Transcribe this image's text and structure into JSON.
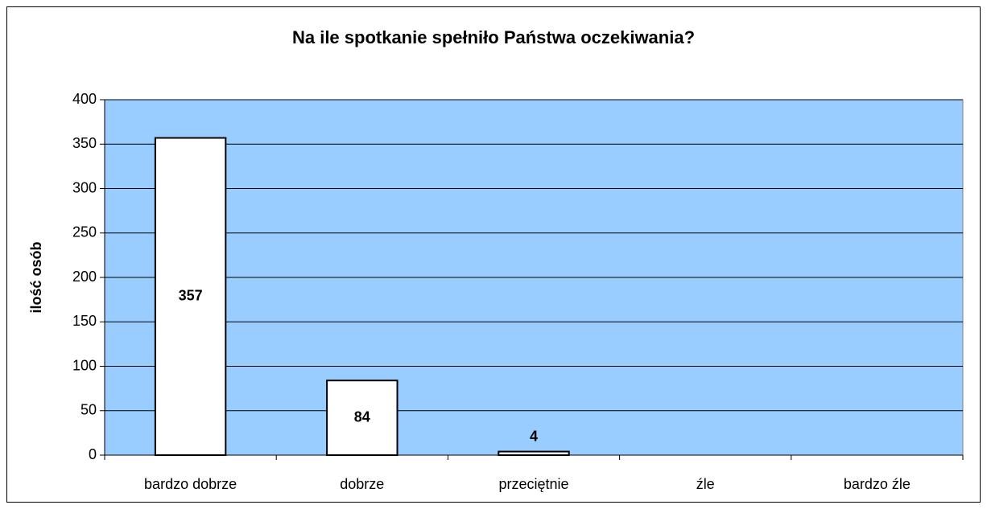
{
  "chart_data": {
    "type": "bar",
    "title": "Na ile spotkanie spełniło Państwa oczekiwania?",
    "y_label": "ilość osób",
    "categories": [
      "bardzo dobrze",
      "dobrze",
      "przeciętnie",
      "źle",
      "bardzo źle"
    ],
    "values": [
      357,
      84,
      4,
      null,
      null
    ],
    "color": "#ffffff",
    "background": "#99ccff",
    "ylim": [
      0,
      400
    ],
    "yticks": [
      0,
      50,
      100,
      150,
      200,
      250,
      300,
      350,
      400
    ],
    "grid": true
  }
}
